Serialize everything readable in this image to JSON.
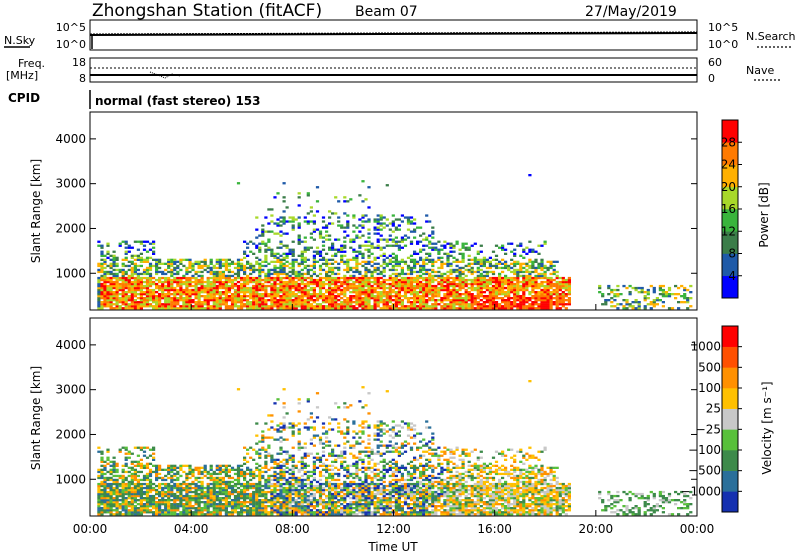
{
  "header": {
    "title": "Zhongshan Station (fitACF)",
    "beam": "Beam 07",
    "date": "27/May/2019"
  },
  "top_panels": {
    "noise": {
      "left_label": "N.Sky",
      "right_label": "N.Search",
      "left_ticks": [
        "10^5",
        "10^0"
      ],
      "right_ticks": [
        "10^5",
        "10^0"
      ]
    },
    "freq": {
      "left_label_line1": "Freq.",
      "left_label_line2": "[MHz]",
      "right_label": "Nave",
      "left_ticks": [
        "18",
        "8"
      ],
      "right_ticks": [
        "60",
        "0"
      ]
    },
    "cpid": {
      "label": "CPID",
      "text": "normal (fast stereo) 153"
    }
  },
  "chart_data": [
    {
      "type": "heatmap",
      "name": "power",
      "xlabel": "",
      "ylabel": "Slant Range [km]",
      "yticks": [
        "1000",
        "2000",
        "3000",
        "4000"
      ],
      "ylim": [
        180,
        4600
      ],
      "xlim": [
        0,
        24
      ],
      "colorbar": {
        "label": "Power [dB]",
        "ticks": [
          "4",
          "8",
          "12",
          "16",
          "20",
          "24",
          "28"
        ],
        "colors": [
          "#0000ff",
          "#1f5aa8",
          "#3b7d49",
          "#39b43c",
          "#a8d82a",
          "#ffb000",
          "#ff7a00",
          "#ff0000"
        ]
      }
    },
    {
      "type": "heatmap",
      "name": "velocity",
      "xlabel": "Time UT",
      "ylabel": "Slant Range [km]",
      "yticks": [
        "1000",
        "2000",
        "3000",
        "4000"
      ],
      "ylim": [
        180,
        4600
      ],
      "xlim": [
        0,
        24
      ],
      "xticks": [
        "00:00",
        "04:00",
        "08:00",
        "12:00",
        "16:00",
        "20:00",
        "00:00"
      ],
      "colorbar": {
        "label": "Velocity [m s⁻¹]",
        "ticks": [
          "1000",
          "500",
          "100",
          "25",
          "−25",
          "−100",
          "−500",
          "−1000"
        ],
        "colors": [
          "#1530b0",
          "#2a6f9a",
          "#3d8a4a",
          "#58c03a",
          "#c8c8c8",
          "#ffc000",
          "#ff9000",
          "#ff5000",
          "#ff0000"
        ]
      }
    }
  ]
}
